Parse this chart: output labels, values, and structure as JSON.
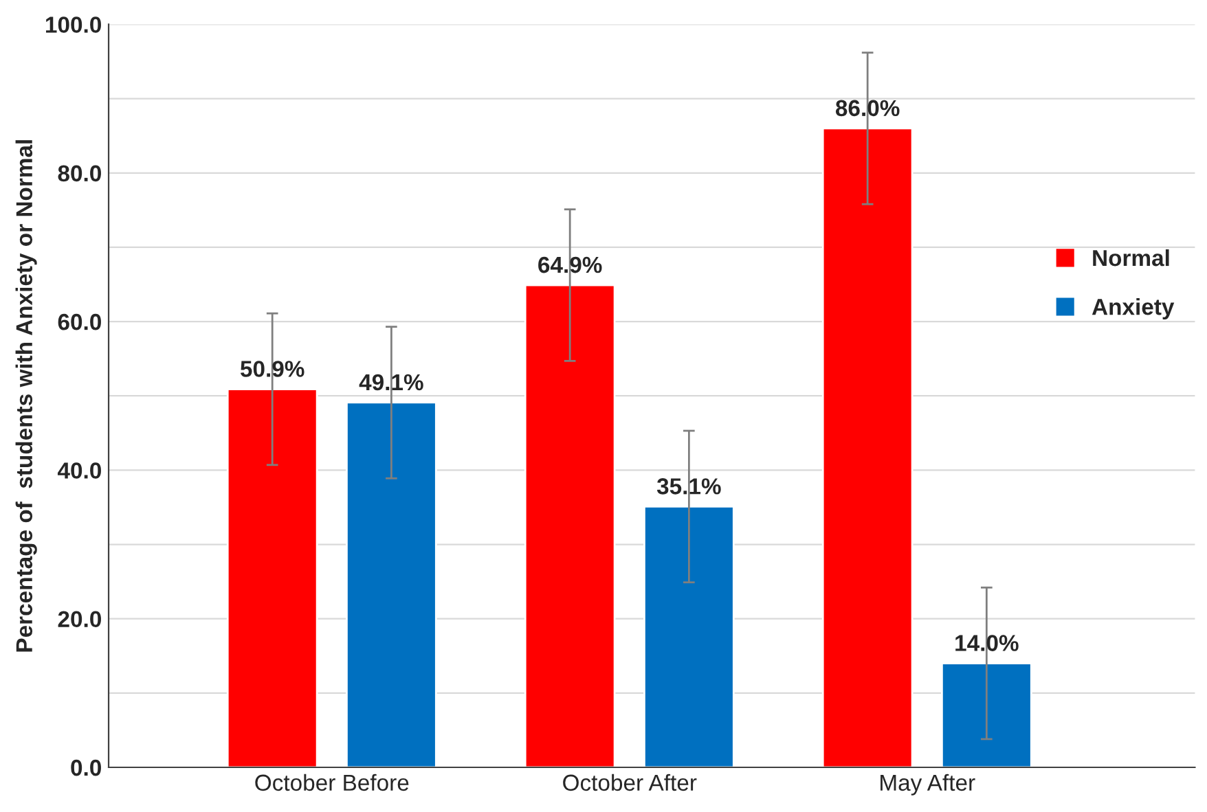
{
  "chart_data": {
    "type": "bar",
    "ylabel": "Percentage of  students with Anxiety or Normal",
    "categories": [
      "October Before",
      "October After",
      "May After"
    ],
    "series": [
      {
        "name": "Normal",
        "color": "#ff0000",
        "values": [
          50.9,
          64.9,
          86.0
        ],
        "value_labels": [
          "50.9%",
          "64.9%",
          "86.0%"
        ],
        "errors": [
          10.2,
          10.2,
          10.2
        ]
      },
      {
        "name": "Anxiety",
        "color": "#0070c0",
        "values": [
          49.1,
          35.1,
          14.0
        ],
        "value_labels": [
          "49.1%",
          "35.1%",
          "14.0%"
        ],
        "errors": [
          10.2,
          10.2,
          10.2
        ]
      }
    ],
    "ylim": [
      0,
      100
    ],
    "yticks": [
      {
        "value": 0,
        "label": "0.0"
      },
      {
        "value": 10,
        "label": null
      },
      {
        "value": 20,
        "label": "20.0"
      },
      {
        "value": 30,
        "label": null
      },
      {
        "value": 40,
        "label": "40.0"
      },
      {
        "value": 50,
        "label": null
      },
      {
        "value": 60,
        "label": "60.0"
      },
      {
        "value": 70,
        "label": null
      },
      {
        "value": 80,
        "label": "80.0"
      },
      {
        "value": 90,
        "label": null
      },
      {
        "value": 100,
        "label": "100.0"
      }
    ],
    "grid": "y",
    "legend": "right"
  }
}
